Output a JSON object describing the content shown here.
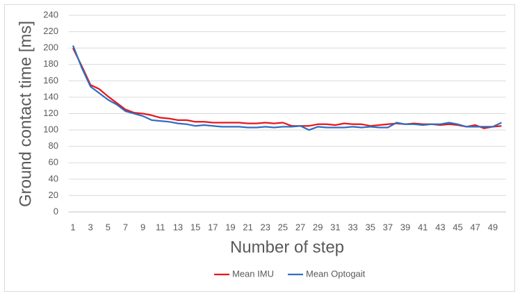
{
  "chart_data": {
    "type": "line",
    "x_label": "Number of step",
    "y_label": "Ground contact time [ms]",
    "categories": [
      "1",
      null,
      "3",
      null,
      "5",
      null,
      "7",
      null,
      "9",
      null,
      "11",
      null,
      "13",
      null,
      "15",
      null,
      "17",
      null,
      "19",
      null,
      "21",
      null,
      "23",
      null,
      "25",
      null,
      "27",
      null,
      "29",
      null,
      "31",
      null,
      "33",
      null,
      "35",
      null,
      "37",
      null,
      "39",
      null,
      "41",
      null,
      "43",
      null,
      "45",
      null,
      "47",
      null,
      "49",
      null
    ],
    "series": [
      {
        "name": "Mean IMU",
        "color": "#e8141b",
        "values": [
          200,
          178,
          155,
          150,
          141,
          133,
          125,
          121,
          120,
          118,
          115,
          114,
          112,
          112,
          110,
          110,
          109,
          109,
          109,
          109,
          108,
          108,
          109,
          108,
          109,
          105,
          105,
          105,
          107,
          107,
          106,
          108,
          107,
          107,
          105,
          106,
          107,
          108,
          107,
          108,
          107,
          107,
          106,
          107,
          106,
          104,
          106,
          102,
          104,
          105
        ]
      },
      {
        "name": "Mean Optogait",
        "color": "#2e6ec0",
        "values": [
          203,
          176,
          153,
          145,
          137,
          131,
          123,
          120,
          117,
          112,
          111,
          110,
          108,
          107,
          105,
          106,
          105,
          104,
          104,
          104,
          103,
          103,
          104,
          103,
          104,
          104,
          105,
          100,
          104,
          103,
          103,
          103,
          104,
          103,
          104,
          103,
          103,
          109,
          107,
          107,
          106,
          107,
          107,
          109,
          107,
          104,
          104,
          104,
          104,
          109
        ]
      }
    ],
    "ylim": [
      0,
      240
    ],
    "yticks": [
      0,
      20,
      40,
      60,
      80,
      100,
      120,
      140,
      160,
      180,
      200,
      220,
      240
    ],
    "grid": true,
    "legend": "bottom"
  }
}
